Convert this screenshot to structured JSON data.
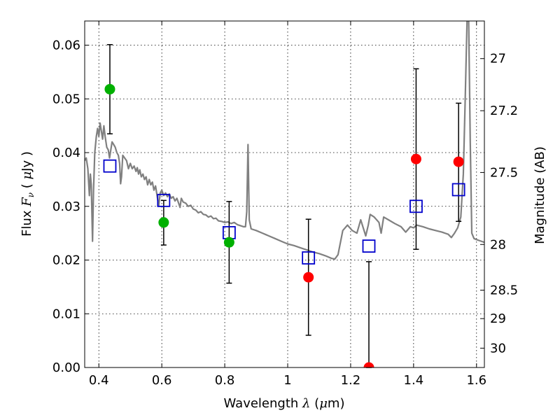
{
  "chart_data": {
    "type": "scatter",
    "title": "",
    "xlabel_prefix": "Wavelength ",
    "xlabel_symbol": "λ",
    "xlabel_unit_open": " (",
    "xlabel_unit_mu": "μ",
    "xlabel_unit_close": "m)",
    "ylabel_prefix": "Flux ",
    "ylabel_symbol_main": "F",
    "ylabel_symbol_sub": "ν",
    "ylabel_unit_open": " ( ",
    "ylabel_unit_mu": "μ",
    "ylabel_unit_close": "Jy )",
    "y2label": "Magnitude (AB)",
    "xlim": [
      0.355,
      1.625
    ],
    "ylim": [
      0.0,
      0.0645
    ],
    "grid": true,
    "x_ticks": [
      0.4,
      0.6,
      0.8,
      1.0,
      1.2,
      1.4,
      1.6
    ],
    "x_tick_labels": [
      "0.4",
      "0.6",
      "0.8",
      "1",
      "1.2",
      "1.4",
      "1.6"
    ],
    "y_ticks": [
      0.0,
      0.01,
      0.02,
      0.03,
      0.04,
      0.05,
      0.06
    ],
    "y_tick_labels": [
      "0.00",
      "0.01",
      "0.02",
      "0.03",
      "0.04",
      "0.05",
      "0.06"
    ],
    "y2_ticks": [
      {
        "label": "27",
        "flux": 0.0575
      },
      {
        "label": "27.2",
        "flux": 0.0478
      },
      {
        "label": "27.5",
        "flux": 0.0363
      },
      {
        "label": "28",
        "flux": 0.0229
      },
      {
        "label": "28.5",
        "flux": 0.0144
      },
      {
        "label": "29",
        "flux": 0.0091
      },
      {
        "label": "30",
        "flux": 0.0036
      }
    ],
    "observed_green": {
      "color": "#00b000",
      "points": [
        {
          "x": 0.435,
          "y": 0.0518,
          "yerr_low": 0.0435,
          "yerr_high": 0.0601
        },
        {
          "x": 0.606,
          "y": 0.027,
          "yerr_low": 0.0228,
          "yerr_high": 0.0311
        },
        {
          "x": 0.814,
          "y": 0.0233,
          "yerr_low": 0.0157,
          "yerr_high": 0.0309
        }
      ]
    },
    "observed_red": {
      "color": "#ff0000",
      "points": [
        {
          "x": 1.066,
          "y": 0.0168,
          "yerr_low": 0.006,
          "yerr_high": 0.0276
        },
        {
          "x": 1.258,
          "y": 0.0,
          "yerr_low": 0.0,
          "yerr_high": 0.0197
        },
        {
          "x": 1.408,
          "y": 0.0388,
          "yerr_low": 0.022,
          "yerr_high": 0.0556
        },
        {
          "x": 1.543,
          "y": 0.0383,
          "yerr_low": 0.0272,
          "yerr_high": 0.0492
        }
      ]
    },
    "model_points": {
      "color": "#0000cc",
      "points": [
        {
          "x": 0.435,
          "y": 0.0375
        },
        {
          "x": 0.606,
          "y": 0.0311
        },
        {
          "x": 0.814,
          "y": 0.0251
        },
        {
          "x": 1.066,
          "y": 0.0204
        },
        {
          "x": 1.258,
          "y": 0.0226
        },
        {
          "x": 1.408,
          "y": 0.03
        },
        {
          "x": 1.543,
          "y": 0.0331
        }
      ]
    },
    "spectrum": {
      "color": "#808080",
      "points": [
        [
          0.355,
          0.0385
        ],
        [
          0.36,
          0.039
        ],
        [
          0.365,
          0.037
        ],
        [
          0.37,
          0.032
        ],
        [
          0.373,
          0.036
        ],
        [
          0.376,
          0.034
        ],
        [
          0.38,
          0.0235
        ],
        [
          0.383,
          0.033
        ],
        [
          0.387,
          0.04
        ],
        [
          0.392,
          0.043
        ],
        [
          0.396,
          0.0445
        ],
        [
          0.4,
          0.043
        ],
        [
          0.404,
          0.0455
        ],
        [
          0.408,
          0.044
        ],
        [
          0.412,
          0.0425
        ],
        [
          0.416,
          0.045
        ],
        [
          0.42,
          0.043
        ],
        [
          0.425,
          0.041
        ],
        [
          0.43,
          0.0405
        ],
        [
          0.434,
          0.039
        ],
        [
          0.438,
          0.0405
        ],
        [
          0.442,
          0.042
        ],
        [
          0.447,
          0.0415
        ],
        [
          0.452,
          0.041
        ],
        [
          0.457,
          0.04
        ],
        [
          0.462,
          0.0395
        ],
        [
          0.466,
          0.038
        ],
        [
          0.469,
          0.0342
        ],
        [
          0.472,
          0.0355
        ],
        [
          0.476,
          0.0395
        ],
        [
          0.482,
          0.039
        ],
        [
          0.488,
          0.0385
        ],
        [
          0.494,
          0.037
        ],
        [
          0.5,
          0.038
        ],
        [
          0.506,
          0.037
        ],
        [
          0.512,
          0.0375
        ],
        [
          0.518,
          0.0365
        ],
        [
          0.522,
          0.0372
        ],
        [
          0.526,
          0.036
        ],
        [
          0.53,
          0.0368
        ],
        [
          0.535,
          0.0355
        ],
        [
          0.54,
          0.036
        ],
        [
          0.545,
          0.035
        ],
        [
          0.55,
          0.0355
        ],
        [
          0.555,
          0.034
        ],
        [
          0.56,
          0.035
        ],
        [
          0.565,
          0.034
        ],
        [
          0.57,
          0.0345
        ],
        [
          0.575,
          0.033
        ],
        [
          0.58,
          0.0338
        ],
        [
          0.585,
          0.032
        ],
        [
          0.59,
          0.03
        ],
        [
          0.595,
          0.0325
        ],
        [
          0.6,
          0.033
        ],
        [
          0.606,
          0.032
        ],
        [
          0.612,
          0.0325
        ],
        [
          0.618,
          0.0318
        ],
        [
          0.624,
          0.0323
        ],
        [
          0.63,
          0.0315
        ],
        [
          0.636,
          0.0318
        ],
        [
          0.642,
          0.031
        ],
        [
          0.648,
          0.0315
        ],
        [
          0.654,
          0.0305
        ],
        [
          0.658,
          0.0298
        ],
        [
          0.662,
          0.0315
        ],
        [
          0.668,
          0.0308
        ],
        [
          0.676,
          0.0306
        ],
        [
          0.684,
          0.03
        ],
        [
          0.692,
          0.0302
        ],
        [
          0.7,
          0.0295
        ],
        [
          0.708,
          0.0293
        ],
        [
          0.716,
          0.0288
        ],
        [
          0.724,
          0.029
        ],
        [
          0.732,
          0.0285
        ],
        [
          0.74,
          0.0284
        ],
        [
          0.748,
          0.028
        ],
        [
          0.756,
          0.0282
        ],
        [
          0.764,
          0.0277
        ],
        [
          0.772,
          0.0278
        ],
        [
          0.78,
          0.0273
        ],
        [
          0.79,
          0.0272
        ],
        [
          0.8,
          0.027
        ],
        [
          0.81,
          0.0271
        ],
        [
          0.82,
          0.0268
        ],
        [
          0.83,
          0.027
        ],
        [
          0.84,
          0.0266
        ],
        [
          0.85,
          0.0264
        ],
        [
          0.86,
          0.0262
        ],
        [
          0.866,
          0.0262
        ],
        [
          0.87,
          0.029
        ],
        [
          0.874,
          0.0415
        ],
        [
          0.878,
          0.0275
        ],
        [
          0.884,
          0.0258
        ],
        [
          0.9,
          0.0255
        ],
        [
          0.92,
          0.025
        ],
        [
          0.94,
          0.0245
        ],
        [
          0.96,
          0.024
        ],
        [
          0.98,
          0.0235
        ],
        [
          1.0,
          0.023
        ],
        [
          1.02,
          0.0227
        ],
        [
          1.04,
          0.0223
        ],
        [
          1.06,
          0.0219
        ],
        [
          1.08,
          0.0215
        ],
        [
          1.1,
          0.0212
        ],
        [
          1.12,
          0.0208
        ],
        [
          1.14,
          0.0203
        ],
        [
          1.15,
          0.0202
        ],
        [
          1.16,
          0.021
        ],
        [
          1.175,
          0.0255
        ],
        [
          1.19,
          0.0265
        ],
        [
          1.205,
          0.0255
        ],
        [
          1.22,
          0.025
        ],
        [
          1.232,
          0.0275
        ],
        [
          1.24,
          0.026
        ],
        [
          1.248,
          0.0245
        ],
        [
          1.256,
          0.0265
        ],
        [
          1.262,
          0.0285
        ],
        [
          1.275,
          0.028
        ],
        [
          1.29,
          0.027
        ],
        [
          1.297,
          0.025
        ],
        [
          1.305,
          0.028
        ],
        [
          1.32,
          0.0275
        ],
        [
          1.34,
          0.0268
        ],
        [
          1.36,
          0.0262
        ],
        [
          1.375,
          0.0252
        ],
        [
          1.39,
          0.0262
        ],
        [
          1.4,
          0.026
        ],
        [
          1.41,
          0.0265
        ],
        [
          1.43,
          0.0262
        ],
        [
          1.45,
          0.0258
        ],
        [
          1.47,
          0.0255
        ],
        [
          1.49,
          0.0252
        ],
        [
          1.51,
          0.0248
        ],
        [
          1.52,
          0.0242
        ],
        [
          1.53,
          0.025
        ],
        [
          1.54,
          0.026
        ],
        [
          1.55,
          0.028
        ],
        [
          1.558,
          0.036
        ],
        [
          1.564,
          0.05
        ],
        [
          1.57,
          0.065
        ],
        [
          1.575,
          0.065
        ],
        [
          1.58,
          0.042
        ],
        [
          1.585,
          0.025
        ],
        [
          1.592,
          0.024
        ],
        [
          1.6,
          0.0238
        ],
        [
          1.61,
          0.0236
        ],
        [
          1.625,
          0.0233
        ]
      ]
    }
  }
}
